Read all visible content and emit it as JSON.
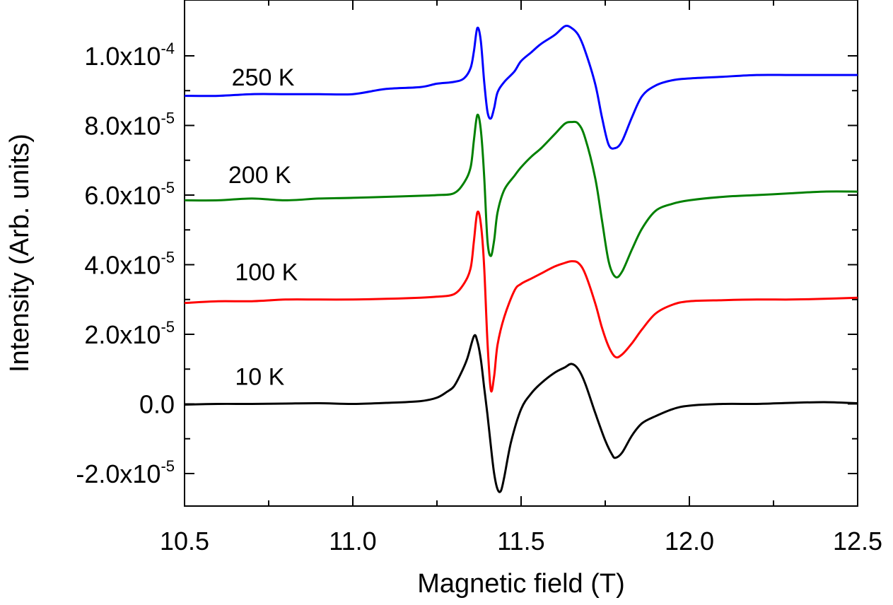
{
  "chart_data": {
    "type": "line",
    "title": "",
    "xlabel": "Magnetic field (T)",
    "ylabel": "Intensity (Arb. units)",
    "xlim": [
      10.5,
      12.5
    ],
    "ylim": [
      -3e-05,
      0.000115
    ],
    "grid": false,
    "legend": "none",
    "x_ticks": [
      {
        "value": 10.5,
        "label": "10.5"
      },
      {
        "value": 11.0,
        "label": "11.0"
      },
      {
        "value": 11.5,
        "label": "11.5"
      },
      {
        "value": 12.0,
        "label": "12.0"
      },
      {
        "value": 12.5,
        "label": "12.5"
      }
    ],
    "y_ticks": [
      {
        "value": -2e-05,
        "mant": "-2.0x10",
        "exp": "-5"
      },
      {
        "value": 0,
        "mant": "0.0",
        "exp": ""
      },
      {
        "value": 2e-05,
        "mant": "2.0x10",
        "exp": "-5"
      },
      {
        "value": 4e-05,
        "mant": "4.0x10",
        "exp": "-5"
      },
      {
        "value": 6e-05,
        "mant": "6.0x10",
        "exp": "-5"
      },
      {
        "value": 8e-05,
        "mant": "8.0x10",
        "exp": "-5"
      },
      {
        "value": 0.0001,
        "mant": "1.0x10",
        "exp": "-4"
      }
    ],
    "series": [
      {
        "name": "10 K",
        "color": "#000000",
        "label_at": [
          10.65,
          5.5e-06
        ],
        "x": [
          10.5,
          10.6,
          10.7,
          10.8,
          10.9,
          11.0,
          11.1,
          11.2,
          11.25,
          11.28,
          11.3,
          11.32,
          11.34,
          11.36,
          11.37,
          11.38,
          11.39,
          11.4,
          11.41,
          11.42,
          11.43,
          11.44,
          11.45,
          11.47,
          11.5,
          11.53,
          11.56,
          11.6,
          11.63,
          11.65,
          11.67,
          11.69,
          11.72,
          11.75,
          11.77,
          11.78,
          11.8,
          11.83,
          11.86,
          11.9,
          11.95,
          12.0,
          12.1,
          12.2,
          12.3,
          12.4,
          12.5
        ],
        "y": [
          -2e-07,
          0,
          0,
          1e-07,
          2e-07,
          0,
          3e-07,
          8e-07,
          1.8e-06,
          3.5e-06,
          5e-06,
          8.5e-06,
          1.3e-05,
          1.95e-05,
          1.8e-05,
          1.3e-05,
          5e-06,
          -3e-06,
          -1.2e-05,
          -2e-05,
          -2.45e-05,
          -2.5e-05,
          -2.1e-05,
          -1.1e-05,
          -1.5e-06,
          3e-06,
          6e-06,
          9e-06,
          1.05e-05,
          1.15e-05,
          1e-05,
          6e-06,
          -2.5e-06,
          -1.05e-05,
          -1.45e-05,
          -1.55e-05,
          -1.4e-05,
          -9e-06,
          -5.5e-06,
          -3.5e-06,
          -1.5e-06,
          -5e-07,
          0,
          0,
          3e-07,
          5e-07,
          2e-07
        ]
      },
      {
        "name": "100 K",
        "color": "#ff0000",
        "label_at": [
          10.65,
          3.55e-05
        ],
        "x": [
          10.5,
          10.6,
          10.7,
          10.8,
          10.9,
          11.0,
          11.1,
          11.2,
          11.25,
          11.3,
          11.33,
          11.35,
          11.36,
          11.37,
          11.38,
          11.39,
          11.4,
          11.41,
          11.42,
          11.43,
          11.45,
          11.48,
          11.5,
          11.53,
          11.56,
          11.6,
          11.63,
          11.65,
          11.67,
          11.69,
          11.72,
          11.74,
          11.76,
          11.78,
          11.8,
          11.83,
          11.86,
          11.9,
          11.95,
          12.0,
          12.1,
          12.2,
          12.3,
          12.4,
          12.5
        ],
        "y": [
          2.9e-05,
          2.95e-05,
          2.95e-05,
          3e-05,
          3e-05,
          3e-05,
          3.02e-05,
          3.05e-05,
          3.08e-05,
          3.15e-05,
          3.45e-05,
          3.9e-05,
          4.7e-05,
          5.5e-05,
          5.2e-05,
          4e-05,
          1.8e-05,
          4e-06,
          8e-06,
          1.7e-05,
          2.5e-05,
          3.25e-05,
          3.45e-05,
          3.6e-05,
          3.75e-05,
          3.95e-05,
          4.05e-05,
          4.1e-05,
          4.05e-05,
          3.75e-05,
          2.9e-05,
          2.2e-05,
          1.65e-05,
          1.35e-05,
          1.42e-05,
          1.75e-05,
          2.15e-05,
          2.6e-05,
          2.85e-05,
          2.95e-05,
          2.98e-05,
          3e-05,
          3e-05,
          3.02e-05,
          3.05e-05
        ]
      },
      {
        "name": "200 K",
        "color": "#008000",
        "label_at": [
          10.63,
          6.35e-05
        ],
        "x": [
          10.5,
          10.6,
          10.7,
          10.8,
          10.9,
          11.0,
          11.1,
          11.2,
          11.25,
          11.3,
          11.33,
          11.35,
          11.36,
          11.37,
          11.38,
          11.39,
          11.4,
          11.41,
          11.42,
          11.43,
          11.45,
          11.48,
          11.5,
          11.53,
          11.56,
          11.6,
          11.63,
          11.65,
          11.67,
          11.69,
          11.72,
          11.74,
          11.76,
          11.78,
          11.8,
          11.83,
          11.86,
          11.9,
          11.95,
          12.0,
          12.1,
          12.2,
          12.3,
          12.4,
          12.5
        ],
        "y": [
          5.85e-05,
          5.85e-05,
          5.9e-05,
          5.85e-05,
          5.9e-05,
          5.92e-05,
          5.95e-05,
          5.98e-05,
          6e-05,
          6.05e-05,
          6.35e-05,
          6.8e-05,
          7.6e-05,
          8.3e-05,
          7.9e-05,
          6.6e-05,
          4.7e-05,
          4.25e-05,
          4.7e-05,
          5.5e-05,
          6.15e-05,
          6.55e-05,
          6.8e-05,
          7.1e-05,
          7.35e-05,
          7.75e-05,
          8.05e-05,
          8.1e-05,
          8.05e-05,
          7.65e-05,
          6.5e-05,
          5.3e-05,
          4.1e-05,
          3.65e-05,
          3.8e-05,
          4.45e-05,
          5.05e-05,
          5.55e-05,
          5.75e-05,
          5.85e-05,
          5.95e-05,
          6e-05,
          6.05e-05,
          6.1e-05,
          6.1e-05
        ]
      },
      {
        "name": "250 K",
        "color": "#0000ff",
        "label_at": [
          10.64,
          9.15e-05
        ],
        "x": [
          10.5,
          10.6,
          10.7,
          10.8,
          10.9,
          11.0,
          11.1,
          11.2,
          11.25,
          11.3,
          11.33,
          11.35,
          11.36,
          11.37,
          11.38,
          11.39,
          11.4,
          11.41,
          11.42,
          11.43,
          11.45,
          11.48,
          11.5,
          11.53,
          11.56,
          11.6,
          11.63,
          11.65,
          11.67,
          11.69,
          11.72,
          11.74,
          11.76,
          11.78,
          11.8,
          11.83,
          11.86,
          11.9,
          11.95,
          12.0,
          12.1,
          12.2,
          12.3,
          12.4,
          12.5
        ],
        "y": [
          8.85e-05,
          8.85e-05,
          8.9e-05,
          8.9e-05,
          8.9e-05,
          8.9e-05,
          9.05e-05,
          9.1e-05,
          9.2e-05,
          9.25e-05,
          9.35e-05,
          9.65e-05,
          0.0001015,
          0.000108,
          0.0001045,
          9.3e-05,
          8.4e-05,
          8.2e-05,
          8.5e-05,
          8.95e-05,
          9.25e-05,
          9.55e-05,
          9.85e-05,
          0.000101,
          0.0001035,
          0.000106,
          0.0001085,
          0.000108,
          0.000106,
          0.0001015,
          9.2e-05,
          8.25e-05,
          7.45e-05,
          7.35e-05,
          7.55e-05,
          8.25e-05,
          8.85e-05,
          9.15e-05,
          9.3e-05,
          9.35e-05,
          9.4e-05,
          9.45e-05,
          9.45e-05,
          9.45e-05,
          9.45e-05
        ]
      }
    ]
  }
}
